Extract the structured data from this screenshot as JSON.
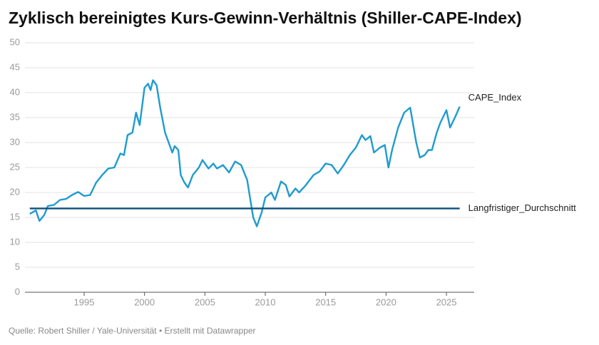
{
  "chart_data": {
    "type": "line",
    "title": "Zyklisch bereinigtes Kurs-Gewinn-Verhältnis (Shiller-CAPE-Index)",
    "source": "Quelle: Robert Shiller / Yale-Universität • Erstellt mit Datawrapper",
    "xlim": [
      1990.1,
      2027.3
    ],
    "xticks": [
      1995,
      2000,
      2005,
      2010,
      2015,
      2020,
      2025
    ],
    "ylim": [
      0,
      50
    ],
    "yticks": [
      0,
      5,
      10,
      15,
      20,
      25,
      30,
      35,
      40,
      45,
      50
    ],
    "grid": true,
    "series": [
      {
        "name": "CAPE_Index",
        "color": "#1f9bcf",
        "x": [
          1990.5,
          1991,
          1991.3,
          1991.7,
          1992,
          1992.5,
          1993,
          1993.5,
          1994,
          1994.5,
          1995,
          1995.5,
          1996,
          1996.5,
          1997,
          1997.5,
          1998,
          1998.3,
          1998.6,
          1999,
          1999.3,
          1999.6,
          2000,
          2000.3,
          2000.5,
          2000.7,
          2001,
          2001.3,
          2001.7,
          2002,
          2002.3,
          2002.5,
          2002.8,
          2003,
          2003.3,
          2003.6,
          2004,
          2004.5,
          2004.8,
          2005.3,
          2005.7,
          2006,
          2006.5,
          2007,
          2007.5,
          2008,
          2008.5,
          2009,
          2009.3,
          2009.7,
          2010,
          2010.5,
          2010.8,
          2011.3,
          2011.7,
          2012,
          2012.5,
          2012.8,
          2013.3,
          2014,
          2014.5,
          2015,
          2015.5,
          2016,
          2016.5,
          2017,
          2017.5,
          2018,
          2018.3,
          2018.7,
          2019,
          2019.5,
          2019.9,
          2020.2,
          2020.5,
          2021,
          2021.5,
          2022,
          2022.5,
          2022.8,
          2023.2,
          2023.5,
          2023.8,
          2024.2,
          2024.5,
          2025,
          2025.3,
          2025.7,
          2026.1
        ],
        "values": [
          15.7,
          16.4,
          14.3,
          15.5,
          17.3,
          17.5,
          18.5,
          18.7,
          19.5,
          20.1,
          19.3,
          19.5,
          22,
          23.5,
          24.8,
          25,
          27.8,
          27.5,
          31.5,
          32,
          36,
          33.5,
          41,
          41.8,
          40.5,
          42.5,
          41.5,
          37,
          32,
          30,
          28,
          29.3,
          28.5,
          23.5,
          22,
          21,
          23.5,
          25,
          26.5,
          24.8,
          25.8,
          24.8,
          25.5,
          24,
          26.2,
          25.5,
          22.5,
          15,
          13.2,
          16,
          19,
          20,
          18.5,
          22.2,
          21.5,
          19.2,
          20.8,
          20,
          21.3,
          23.5,
          24.2,
          25.8,
          25.5,
          23.8,
          25.5,
          27.5,
          29,
          31.5,
          30.5,
          31.3,
          28,
          29,
          29.5,
          25,
          28.5,
          33,
          36,
          37,
          30,
          27,
          27.5,
          28.5,
          28.5,
          32,
          34,
          36.5,
          33,
          35,
          37.2
        ]
      },
      {
        "name": "Langfristiger_Durchschnitt",
        "color": "#0b4f7e",
        "x": [
          1990.5,
          2026.1
        ],
        "values": [
          16.8,
          16.8
        ]
      }
    ]
  }
}
